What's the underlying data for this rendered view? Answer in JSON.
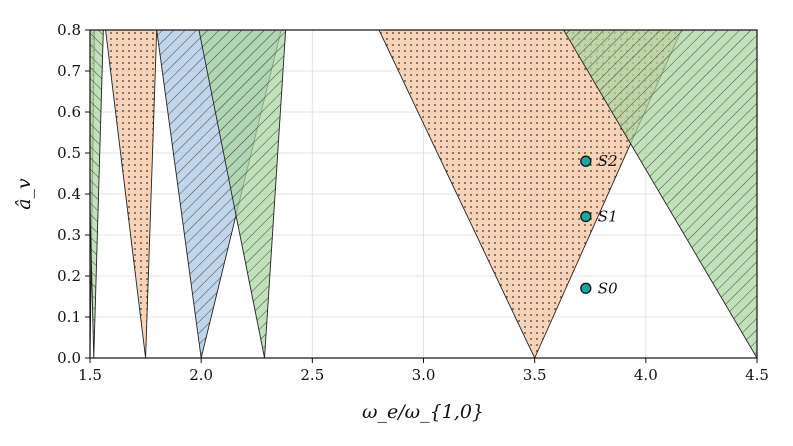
{
  "chart_data": {
    "type": "area",
    "title": "",
    "xlabel": "ω_e/ω_{1,0}",
    "ylabel": "â_v",
    "xlim": [
      1.5,
      4.5
    ],
    "ylim": [
      0.0,
      0.8
    ],
    "xticks": [
      "1.5",
      "2.0",
      "2.5",
      "3.0",
      "3.5",
      "4.0",
      "4.5"
    ],
    "yticks": [
      "0.0",
      "0.1",
      "0.2",
      "0.3",
      "0.4",
      "0.5",
      "0.6",
      "0.7",
      "0.8"
    ],
    "grid": true,
    "colors": {
      "orange": "#f7c29c",
      "blue": "#a9c6e2",
      "green": "#a9d5a0",
      "point": "#1aa89e"
    },
    "regions": [
      {
        "pattern": "dots",
        "color": "orange",
        "tip": 1.5,
        "left_top": 1.48,
        "right_top": 1.52
      },
      {
        "pattern": "hatch-down",
        "color": "green",
        "tip": 1.517,
        "left_top": 1.48,
        "right_top": 1.56
      },
      {
        "pattern": "dots",
        "color": "orange",
        "tip": 1.75,
        "left_top": 1.57,
        "right_top": 1.8
      },
      {
        "pattern": "hatch-up",
        "color": "blue",
        "tip": 2.0,
        "left_top": 1.8,
        "right_top": 2.36
      },
      {
        "pattern": "hatch-up",
        "color": "green",
        "tip": 2.285,
        "left_top": 1.99,
        "right_top": 2.38
      },
      {
        "pattern": "dots",
        "color": "orange",
        "tip": 3.5,
        "left_top": 2.8,
        "right_top": 4.16
      },
      {
        "pattern": "hatch-up",
        "color": "green",
        "tip": 4.5,
        "left_top": 3.63,
        "right_top": 5.45
      }
    ],
    "points": [
      {
        "label": "S0",
        "x": 3.73,
        "y": 0.17
      },
      {
        "label": "S1",
        "x": 3.73,
        "y": 0.345
      },
      {
        "label": "S2",
        "x": 3.73,
        "y": 0.48
      }
    ]
  }
}
